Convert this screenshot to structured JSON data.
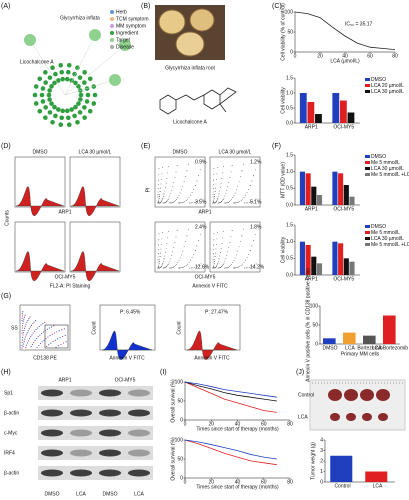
{
  "panels": {
    "A": {
      "label": "(A)",
      "legend": [
        "Herb",
        "TCM symptom",
        "MM symptom",
        "Ingredient",
        "Target",
        "Disease"
      ],
      "colors": [
        "#5a9bd5",
        "#f4b183",
        "#c9a0dc",
        "#2e9e3e",
        "#8fd18f",
        "#a9a9a9"
      ],
      "nodes": [
        "Licochalcone A",
        "Glycyrrhiza inflata"
      ]
    },
    "B": {
      "label": "(B)",
      "caption": "Glycyrrhiza inflata root",
      "compound": "Licochalcone A"
    },
    "C": {
      "label": "(C)"
    },
    "D": {
      "label": "(D)",
      "titles": [
        "DMSO",
        "LCA 30 µmol/L"
      ],
      "rows": [
        "ARP1",
        "OCI-MY5"
      ],
      "ylabel": "Counts",
      "xlabel": "FL2-A: PI Staining"
    },
    "E": {
      "label": "(E)",
      "titles": [
        "DMSO",
        "LCA 30 µmol/L"
      ],
      "rows": [
        "ARP1",
        "OCI-MY5"
      ],
      "ylabel": "PI",
      "xlabel": "Annexin V FITC",
      "quadrants": [
        "0.9%",
        "3.5%",
        "1.2%",
        "5.1%",
        "2.4%",
        "12.6%",
        "1.8%",
        "14.2%"
      ]
    },
    "F": {
      "label": "(F)"
    },
    "G": {
      "label": "(G)",
      "ss": "SS",
      "cd138": "CD138 PE",
      "count": "Count",
      "annexin": "Annexin V FITC",
      "gate1": "P: 6.45%",
      "gate2": "P: 27.47%"
    },
    "H": {
      "label": "(H)",
      "cells": [
        "ARP1",
        "OCI-MY5"
      ],
      "proteins": [
        "Sp1",
        "β-actin",
        "c-Myc",
        "IRF4",
        "β-actin"
      ],
      "treatments": [
        "DMSO",
        "LCA",
        "DMSO",
        "LCA"
      ]
    },
    "I": {
      "label": "(I)"
    },
    "J": {
      "label": "(J)",
      "groups": [
        "Control",
        "LCA"
      ]
    }
  },
  "charts": {
    "c_line": {
      "type": "line",
      "xlabel": "LCA (µmol/L)",
      "ylabel": "Cell viability (% of control)",
      "annotation": "IC₅₀ = 35.17",
      "x": [
        0,
        10,
        20,
        30,
        40,
        50,
        60,
        80
      ],
      "values": [
        100,
        96,
        86,
        62,
        40,
        22,
        12,
        6
      ],
      "xlim": [
        0,
        80
      ],
      "xticks": [
        0,
        20,
        40,
        60,
        80
      ],
      "ylim": [
        0,
        100
      ],
      "yticks": [
        0,
        50,
        100
      ],
      "color": "#222"
    },
    "c_bar": {
      "type": "bar",
      "ylabel": "Cell viability",
      "categories": [
        "ARP1",
        "OCI-MY5"
      ],
      "ylim": [
        0,
        1.5
      ],
      "yticks": [
        {
          "value": 0,
          "label": "0.0"
        },
        0.5,
        {
          "value": 1,
          "label": "1.0"
        },
        1.5
      ],
      "series": [
        {
          "name": "DMSO",
          "color": "#1f3fbf",
          "values": [
            1.0,
            1.0
          ]
        },
        {
          "name": "LCA 20 µmol/L",
          "color": "#e02020",
          "values": [
            0.7,
            0.75
          ]
        },
        {
          "name": "LCA 30 µmol/L",
          "color": "#111",
          "values": [
            0.3,
            0.35
          ]
        }
      ]
    },
    "f_top": {
      "type": "bar",
      "ylabel": "MTT (OD value)",
      "categories": [
        "ARP1",
        "OCI-MY5"
      ],
      "ylim": [
        0,
        1.5
      ],
      "yticks": [
        {
          "value": 0,
          "label": "0.0"
        },
        0.5,
        {
          "value": 1,
          "label": "1.0"
        },
        1.5
      ],
      "series": [
        {
          "name": "DMSO",
          "color": "#1f3fbf",
          "values": [
            1.0,
            1.0
          ]
        },
        {
          "name": "Me 5 mmol/L",
          "color": "#e02020",
          "values": [
            0.95,
            0.95
          ]
        },
        {
          "name": "LCA 30 µmol/L",
          "color": "#111",
          "values": [
            0.55,
            0.6
          ]
        },
        {
          "name": "Me 5 mmol/L +LCA 30 µmol/L",
          "color": "#777",
          "values": [
            0.3,
            0.25
          ]
        }
      ]
    },
    "f_bot": {
      "type": "bar",
      "ylabel": "Cell viability",
      "categories": [
        "ARP1",
        "OCI-MY5"
      ],
      "ylim": [
        0,
        1.5
      ],
      "yticks": [
        {
          "value": 0,
          "label": "0.0"
        },
        0.5,
        {
          "value": 1,
          "label": "1.0"
        },
        1.5
      ],
      "series": [
        {
          "name": "DMSO",
          "color": "#1f3fbf",
          "values": [
            1.0,
            1.0
          ]
        },
        {
          "name": "Me 5 mmol/L",
          "color": "#e02020",
          "values": [
            0.9,
            0.95
          ]
        },
        {
          "name": "LCA 30 µmol/L",
          "color": "#111",
          "values": [
            0.55,
            0.5
          ]
        },
        {
          "name": "Me 5 mmol/L +LCA 30 µmol/L",
          "color": "#777",
          "values": [
            0.35,
            0.4
          ]
        }
      ]
    },
    "g_bar": {
      "type": "bar",
      "ylabel": "Annexin V positive cells (% in CD138 positive cells)",
      "xlabel": "Primary MM cells",
      "categories": [
        "DMSO",
        "LCA",
        "Bortezomib",
        "LCA Bortezomib"
      ],
      "colors": [
        "#1f3fbf",
        "#f0a030",
        "#555",
        "#e02020"
      ],
      "ylim": [
        0,
        100
      ],
      "yticks": [
        0,
        50,
        100
      ],
      "series": [
        {
          "values": [
            15,
            30,
            22,
            75
          ]
        }
      ]
    },
    "i_top": {
      "type": "line",
      "xlabel": "Times since start of therapy (months)",
      "ylabel": "Overall survival (%)",
      "xlim": [
        0,
        80
      ],
      "xticks": [
        0,
        20,
        40,
        60,
        80
      ],
      "ylim": [
        0,
        100
      ],
      "yticks": [
        0,
        50,
        100
      ],
      "series": [
        {
          "color": "#e02020",
          "x": [
            0,
            10,
            20,
            30,
            40,
            50,
            60,
            70
          ],
          "values": [
            100,
            85,
            70,
            55,
            45,
            35,
            25,
            20
          ]
        },
        {
          "color": "#111",
          "x": [
            0,
            10,
            20,
            30,
            40,
            50,
            60,
            70
          ],
          "values": [
            100,
            90,
            82,
            72,
            65,
            60,
            55,
            50
          ]
        },
        {
          "color": "#1f3fbf",
          "x": [
            0,
            10,
            20,
            30,
            40,
            50,
            60,
            70
          ],
          "values": [
            100,
            95,
            88,
            80,
            75,
            70,
            65,
            60
          ]
        }
      ]
    },
    "i_bot": {
      "type": "line",
      "xlabel": "Times since start of therapy (months)",
      "ylabel": "Overall survival (%)",
      "xlim": [
        0,
        80
      ],
      "xticks": [
        0,
        20,
        40,
        60,
        80
      ],
      "ylim": [
        0,
        100
      ],
      "yticks": [
        0,
        50,
        100
      ],
      "series": [
        {
          "color": "#e02020",
          "x": [
            0,
            10,
            20,
            30,
            40,
            50,
            60,
            70
          ],
          "values": [
            100,
            90,
            78,
            65,
            55,
            45,
            40,
            35
          ]
        },
        {
          "color": "#1f3fbf",
          "x": [
            0,
            10,
            20,
            30,
            40,
            50,
            60,
            70
          ],
          "values": [
            100,
            95,
            88,
            80,
            72,
            62,
            55,
            50
          ]
        }
      ]
    },
    "j_bar": {
      "type": "bar",
      "ylabel": "Tumor weight (g)",
      "categories": [
        "Control",
        "LCA"
      ],
      "colors": [
        "#1f3fbf",
        "#e02020"
      ],
      "ylim": [
        0,
        4
      ],
      "yticks": [
        0,
        1,
        2,
        3,
        4
      ],
      "series": [
        {
          "values": [
            2.5,
            1.0
          ]
        }
      ]
    }
  }
}
